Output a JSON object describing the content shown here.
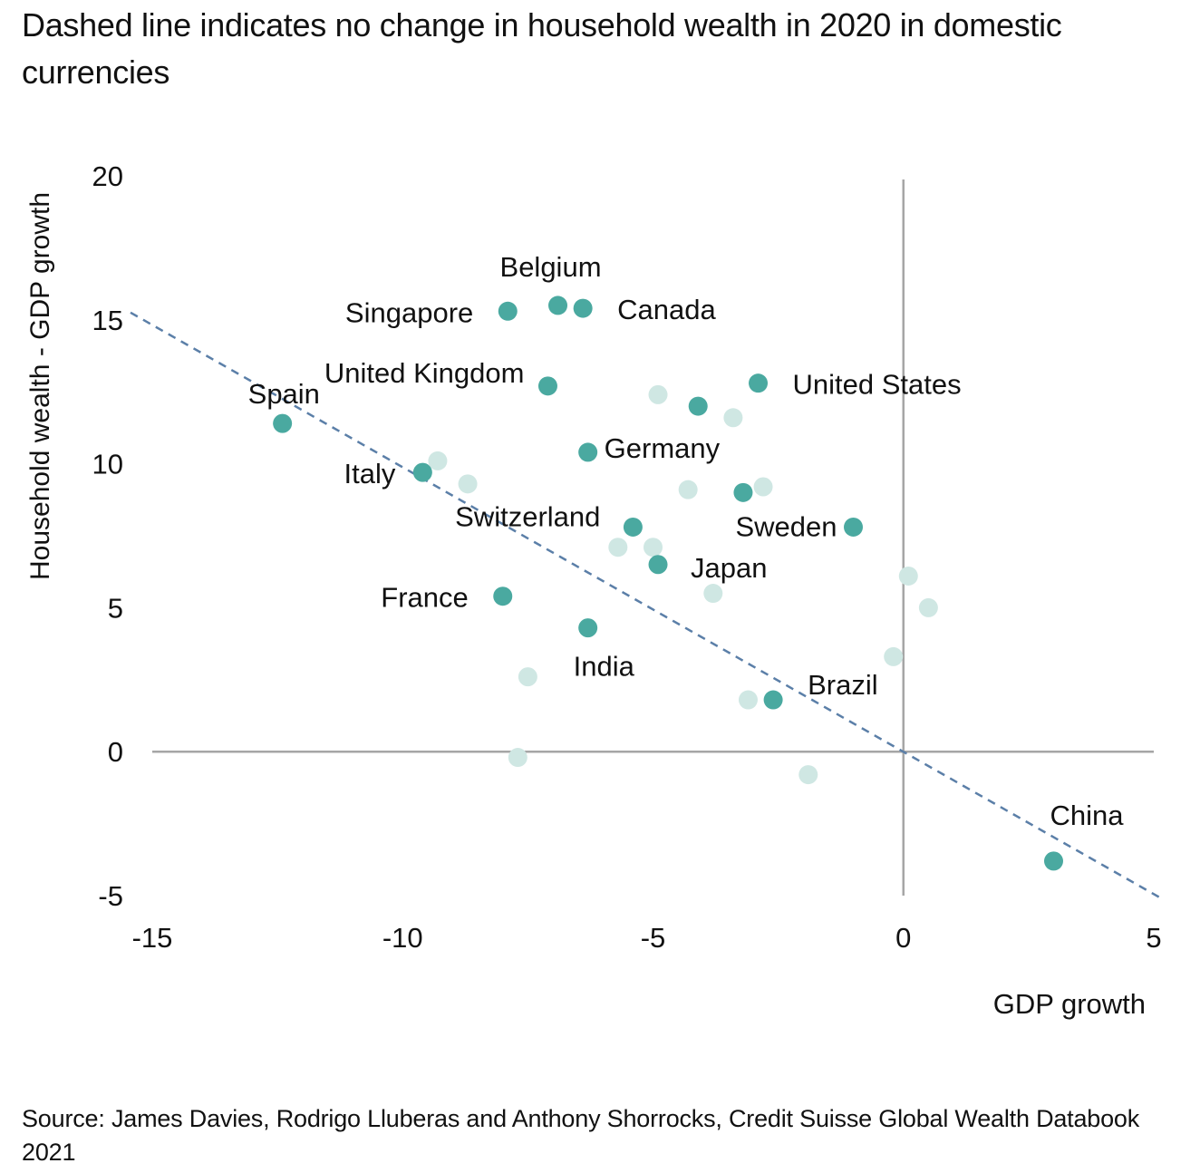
{
  "title": "Dashed line indicates no change in household wealth in 2020 in domestic currencies",
  "source": "Source: James Davies, Rodrigo Lluberas and Anthony Shorrocks, Credit Suisse Global Wealth Databook 2021",
  "colors": {
    "highlight": "#4aa9a0",
    "other": "#cfe7e3",
    "axis": "#a6a6a6",
    "dashed": "#5b7fa8",
    "text": "#111111"
  },
  "chart_data": {
    "type": "scatter",
    "title": "Dashed line indicates no change in household wealth in 2020 in domestic currencies",
    "xlabel": "GDP growth",
    "ylabel": "Household wealth - GDP growth",
    "xlim": [
      -15,
      5
    ],
    "ylim": [
      -5,
      20
    ],
    "xticks": [
      "-15",
      "-10",
      "-5",
      "0",
      "5"
    ],
    "yticks": [
      "-5",
      "0",
      "5",
      "10",
      "15",
      "20"
    ],
    "grid": false,
    "reference_line": {
      "style": "dashed",
      "points": [
        [
          -15,
          15
        ],
        [
          5,
          -5
        ]
      ]
    },
    "labeled_points": [
      {
        "label": "Belgium",
        "x": -6.9,
        "y": 15.5
      },
      {
        "label": "Singapore",
        "x": -7.9,
        "y": 15.3
      },
      {
        "label": "Canada",
        "x": -6.4,
        "y": 15.4
      },
      {
        "label": "United Kingdom",
        "x": -7.1,
        "y": 12.7
      },
      {
        "label": "United States",
        "x": -2.9,
        "y": 12.8
      },
      {
        "label": "Spain",
        "x": -12.4,
        "y": 11.4
      },
      {
        "label": "Italy",
        "x": -9.6,
        "y": 9.7
      },
      {
        "label": "Germany",
        "x": -6.3,
        "y": 10.4
      },
      {
        "label": "Switzerland",
        "x": -5.4,
        "y": 7.8
      },
      {
        "label": "Sweden",
        "x": -1.0,
        "y": 7.8
      },
      {
        "label": "Japan",
        "x": -4.9,
        "y": 6.5
      },
      {
        "label": "France",
        "x": -8.0,
        "y": 5.4
      },
      {
        "label": "India",
        "x": -6.3,
        "y": 4.3
      },
      {
        "label": "Brazil",
        "x": -2.6,
        "y": 1.8
      },
      {
        "label": "China",
        "x": 3.0,
        "y": -3.8
      }
    ],
    "other_points": [
      {
        "x": -4.1,
        "y": 12.0,
        "highlight": true
      },
      {
        "x": -3.2,
        "y": 9.0,
        "highlight": true
      },
      {
        "x": -4.9,
        "y": 12.4
      },
      {
        "x": -3.4,
        "y": 11.6
      },
      {
        "x": -9.3,
        "y": 10.1
      },
      {
        "x": -8.7,
        "y": 9.3
      },
      {
        "x": -4.3,
        "y": 9.1
      },
      {
        "x": -2.8,
        "y": 9.2
      },
      {
        "x": -5.7,
        "y": 7.1
      },
      {
        "x": -5.0,
        "y": 7.1
      },
      {
        "x": -3.8,
        "y": 5.5
      },
      {
        "x": 0.1,
        "y": 6.1
      },
      {
        "x": 0.5,
        "y": 5.0
      },
      {
        "x": -0.2,
        "y": 3.3
      },
      {
        "x": -7.5,
        "y": 2.6
      },
      {
        "x": -3.1,
        "y": 1.8
      },
      {
        "x": -7.7,
        "y": -0.2
      },
      {
        "x": -1.9,
        "y": -0.8
      }
    ]
  }
}
